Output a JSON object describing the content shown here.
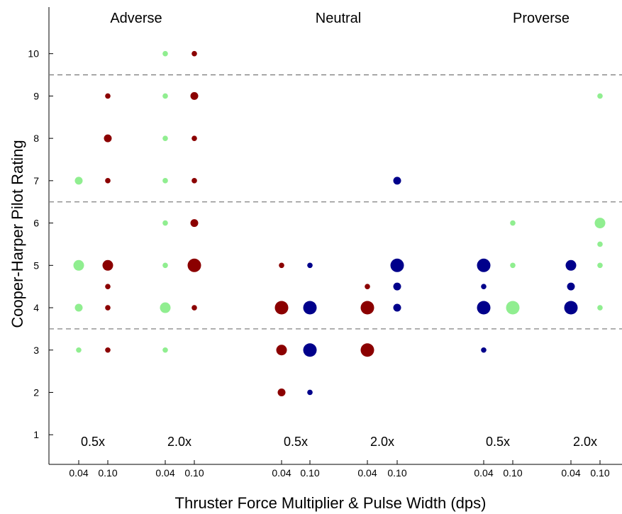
{
  "chart_data": {
    "type": "scatter",
    "title": "",
    "xlabel": "Thruster Force Multiplier & Pulse Width (dps)",
    "ylabel": "Cooper-Harper Pilot Rating",
    "ylim": [
      0.3,
      11.1
    ],
    "yticks": [
      1,
      2,
      3,
      4,
      5,
      6,
      7,
      8,
      9,
      10
    ],
    "grid": false,
    "legend": "none",
    "thresholds": [
      3.5,
      6.5,
      9.5
    ],
    "groups": [
      "Adverse",
      "Neutral",
      "Proverse"
    ],
    "multipliers": [
      "0.5x",
      "2.0x",
      "0.5x",
      "2.0x",
      "0.5x",
      "2.0x"
    ],
    "pulse_width_labels": [
      "0.04",
      "0.10",
      "0.04",
      "0.10",
      "0.04",
      "0.10",
      "0.04",
      "0.10",
      "0.04",
      "0.10",
      "0.04",
      "0.10"
    ],
    "colors": {
      "green": "#90ee90",
      "red": "#8b0000",
      "blue": "#00008b",
      "dashed": "#808080"
    },
    "columns": [
      {
        "col": 0,
        "color": "green",
        "points": [
          [
            3,
            1
          ],
          [
            4,
            2
          ],
          [
            5,
            3
          ],
          [
            7,
            2
          ]
        ]
      },
      {
        "col": 1,
        "color": "red",
        "points": [
          [
            3,
            1
          ],
          [
            4,
            1
          ],
          [
            4.5,
            1
          ],
          [
            5,
            3
          ],
          [
            7,
            1
          ],
          [
            8,
            2
          ],
          [
            9,
            1
          ]
        ]
      },
      {
        "col": 2,
        "color": "green",
        "points": [
          [
            3,
            1
          ],
          [
            4,
            3
          ],
          [
            5,
            1
          ],
          [
            6,
            1
          ],
          [
            7,
            1
          ],
          [
            8,
            1
          ],
          [
            9,
            1
          ],
          [
            10,
            1
          ]
        ]
      },
      {
        "col": 3,
        "color": "red",
        "points": [
          [
            4,
            1
          ],
          [
            5,
            4
          ],
          [
            6,
            2
          ],
          [
            7,
            1
          ],
          [
            8,
            1
          ],
          [
            9,
            2
          ],
          [
            10,
            1
          ]
        ]
      },
      {
        "col": 4,
        "color": "red",
        "points": [
          [
            2,
            2
          ],
          [
            3,
            3
          ],
          [
            4,
            4
          ],
          [
            5,
            1
          ]
        ]
      },
      {
        "col": 5,
        "color": "blue",
        "points": [
          [
            2,
            1
          ],
          [
            3,
            4
          ],
          [
            4,
            6
          ],
          [
            5,
            1
          ]
        ]
      },
      {
        "col": 6,
        "color": "red",
        "points": [
          [
            3,
            6
          ],
          [
            4,
            4
          ],
          [
            4.5,
            1
          ]
        ]
      },
      {
        "col": 7,
        "color": "blue",
        "points": [
          [
            4,
            2
          ],
          [
            4.5,
            2
          ],
          [
            5,
            4
          ],
          [
            7,
            2
          ]
        ]
      },
      {
        "col": 8,
        "color": "blue",
        "points": [
          [
            3,
            1
          ],
          [
            4,
            6
          ],
          [
            4.5,
            1
          ],
          [
            5,
            4
          ]
        ]
      },
      {
        "col": 9,
        "color": "green",
        "points": [
          [
            4,
            6
          ],
          [
            5,
            1
          ],
          [
            6,
            1
          ]
        ]
      },
      {
        "col": 10,
        "color": "blue",
        "points": [
          [
            4,
            4
          ],
          [
            4.5,
            2
          ],
          [
            5,
            3
          ]
        ]
      },
      {
        "col": 11,
        "color": "green",
        "points": [
          [
            4,
            1
          ],
          [
            5,
            1
          ],
          [
            5.5,
            1
          ],
          [
            6,
            3
          ],
          [
            9,
            1
          ]
        ]
      }
    ]
  }
}
